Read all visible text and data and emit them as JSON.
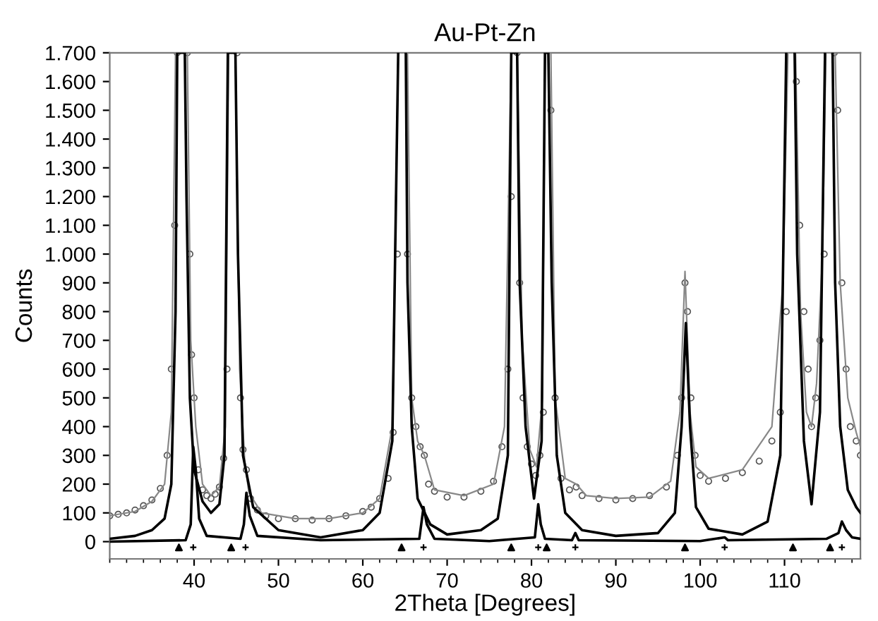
{
  "chart_data": {
    "type": "line",
    "title": "Au-Pt-Zn",
    "xlabel": "2Theta [Degrees]",
    "ylabel": "Counts",
    "xlim": [
      30,
      119
    ],
    "xticks": [
      40,
      50,
      60,
      70,
      80,
      90,
      100,
      110
    ],
    "ylim": [
      -60,
      1700
    ],
    "yticks": [
      0,
      100,
      200,
      300,
      400,
      500,
      600,
      700,
      800,
      900,
      {
        "value": 1000,
        "label": "1.000"
      },
      {
        "value": 1100,
        "label": "1.100"
      },
      {
        "value": 1200,
        "label": "1.200"
      },
      {
        "value": 1300,
        "label": "1.300"
      },
      {
        "value": 1400,
        "label": "1.400"
      },
      {
        "value": 1500,
        "label": "1.500"
      },
      {
        "value": 1600,
        "label": "1.600"
      },
      {
        "value": 1700,
        "label": "1.700"
      }
    ],
    "grid": false,
    "legend": false,
    "series": [
      {
        "type": "scatter",
        "marker": "circle",
        "color": "#555555",
        "x": [
          30,
          31,
          32,
          33,
          34,
          35,
          36,
          36.8,
          37.3,
          37.7,
          38.0,
          39.2,
          39.5,
          39.7,
          40.0,
          40.5,
          41.0,
          41.5,
          42.0,
          42.5,
          43.0,
          43.5,
          43.9,
          45.1,
          45.5,
          45.8,
          46.2,
          46.7,
          47.5,
          48.5,
          50,
          52,
          54,
          56,
          58,
          60,
          61,
          62,
          63,
          63.6,
          64.1,
          65.3,
          65.8,
          66.3,
          66.8,
          67.3,
          67.8,
          68.5,
          70,
          72,
          74,
          75.5,
          76.5,
          77.2,
          77.6,
          78.3,
          78.6,
          79.0,
          79.5,
          80.0,
          80.5,
          81.0,
          81.4,
          82.3,
          82.8,
          83.5,
          84.5,
          85.3,
          86,
          88,
          90,
          92,
          94,
          96,
          97.3,
          97.8,
          98.2,
          98.5,
          98.9,
          99.4,
          100,
          101,
          103,
          105,
          107,
          108.5,
          109.5,
          110.2,
          111.4,
          111.8,
          112.3,
          112.8,
          113.2,
          113.7,
          114.2,
          114.7,
          115.9,
          116.3,
          116.8,
          117.3,
          117.8,
          118.5,
          119
        ],
        "values": [
          90,
          95,
          100,
          110,
          125,
          145,
          185,
          300,
          600,
          1100,
          1700,
          1700,
          1000,
          650,
          500,
          250,
          180,
          160,
          150,
          165,
          190,
          290,
          600,
          1700,
          500,
          320,
          250,
          150,
          110,
          90,
          80,
          80,
          75,
          80,
          90,
          105,
          120,
          150,
          220,
          380,
          1000,
          1000,
          500,
          400,
          330,
          300,
          200,
          175,
          155,
          155,
          175,
          210,
          330,
          600,
          1200,
          1700,
          900,
          500,
          330,
          270,
          230,
          300,
          450,
          1500,
          500,
          220,
          180,
          190,
          160,
          150,
          145,
          150,
          160,
          190,
          300,
          500,
          900,
          800,
          500,
          300,
          230,
          210,
          220,
          240,
          280,
          350,
          450,
          800,
          1600,
          1100,
          800,
          600,
          400,
          500,
          700,
          1000,
          1700,
          1500,
          900,
          600,
          400,
          350,
          300
        ]
      },
      {
        "color": "#888888",
        "x": [
          30,
          33,
          35,
          36.5,
          37.3,
          37.8,
          39.2,
          39.6,
          40.2,
          41,
          42,
          43,
          43.7,
          44.1,
          44.9,
          45.4,
          46,
          46.5,
          48,
          52,
          56,
          60,
          62,
          63.5,
          64.2,
          65.3,
          65.8,
          66.5,
          67.3,
          68.5,
          72,
          75.5,
          76.8,
          77.6,
          78.3,
          78.9,
          79.8,
          80.6,
          81.3,
          81.6,
          82.3,
          82.8,
          84,
          85.3,
          86.5,
          90,
          94,
          96.5,
          97.6,
          98.2,
          98.8,
          99.5,
          101,
          105,
          108.5,
          109.8,
          110.4,
          111.3,
          111.9,
          112.6,
          113.2,
          113.8,
          114.5,
          114.9,
          116.0,
          116.6,
          117.5,
          118.5,
          119
        ],
        "values": [
          90,
          105,
          140,
          200,
          450,
          1700,
          1700,
          700,
          400,
          200,
          160,
          190,
          400,
          1700,
          1700,
          600,
          280,
          170,
          100,
          80,
          80,
          100,
          150,
          400,
          1700,
          1700,
          500,
          350,
          300,
          180,
          160,
          200,
          400,
          1700,
          1700,
          700,
          320,
          260,
          500,
          1700,
          1700,
          500,
          220,
          200,
          160,
          150,
          155,
          210,
          450,
          940,
          450,
          260,
          220,
          250,
          400,
          900,
          1700,
          1700,
          800,
          450,
          400,
          550,
          1000,
          1700,
          1700,
          900,
          500,
          380,
          330
        ]
      },
      {
        "color": "#000000",
        "x": [
          30,
          33,
          35,
          36.5,
          37.3,
          37.8,
          38.0,
          38.9,
          39.1,
          39.5,
          40.0,
          41.0,
          42.0,
          43.0,
          43.6,
          44.0,
          44.9,
          45.2,
          45.8,
          47,
          50,
          55,
          60,
          62,
          63.5,
          64.2,
          64.4,
          65.1,
          65.3,
          65.8,
          66.5,
          68,
          70,
          74,
          76,
          77.2,
          77.6,
          78.3,
          78.6,
          79.3,
          80.3,
          81.2,
          81.6,
          82.0,
          82.4,
          83,
          84,
          86,
          90,
          95,
          97,
          97.8,
          98.3,
          98.8,
          99.5,
          101,
          105,
          108,
          109.5,
          110.2,
          110.5,
          111.2,
          111.5,
          112.3,
          113.2,
          114.2,
          114.8,
          115.1,
          115.7,
          116.0,
          116.6,
          117.5,
          118.5,
          119
        ],
        "values": [
          10,
          20,
          40,
          80,
          200,
          800,
          1700,
          1700,
          1200,
          500,
          250,
          140,
          100,
          130,
          300,
          1700,
          1700,
          1000,
          300,
          120,
          40,
          15,
          40,
          100,
          350,
          1700,
          null,
          1700,
          900,
          400,
          150,
          60,
          25,
          40,
          80,
          300,
          1700,
          1700,
          900,
          400,
          150,
          350,
          1700,
          1700,
          900,
          300,
          100,
          40,
          20,
          30,
          100,
          400,
          760,
          400,
          120,
          45,
          25,
          70,
          300,
          1700,
          null,
          1700,
          1000,
          350,
          130,
          450,
          1700,
          null,
          1700,
          900,
          400,
          180,
          120,
          100
        ]
      },
      {
        "color": "#000000",
        "x": [
          30,
          39.0,
          39.6,
          39.9,
          40.2,
          40.6,
          41.5,
          45.5,
          45.9,
          46.2,
          46.6,
          47.5,
          55,
          66.7,
          67.2,
          67.6,
          68.5,
          75,
          80.4,
          80.8,
          81.1,
          81.6,
          84.8,
          85.2,
          85.6,
          100,
          102.9,
          103.3,
          115,
          116.4,
          116.8,
          117.3,
          118,
          119
        ],
        "values": [
          0,
          5,
          60,
          330,
          250,
          80,
          20,
          10,
          60,
          170,
          90,
          20,
          5,
          10,
          120,
          60,
          10,
          2,
          15,
          130,
          60,
          10,
          5,
          30,
          5,
          2,
          15,
          5,
          10,
          30,
          70,
          40,
          15,
          10
        ]
      },
      {
        "type": "scatter",
        "marker": "triangle",
        "color": "#000000",
        "x": [
          38.2,
          44.4,
          64.6,
          77.6,
          81.8,
          98.2,
          111.0,
          115.4
        ],
        "values": [
          -20,
          -20,
          -20,
          -20,
          -20,
          -20,
          -20,
          -20
        ]
      },
      {
        "type": "scatter",
        "marker": "cross",
        "color": "#000000",
        "x": [
          39.9,
          46.1,
          67.2,
          80.8,
          85.2,
          102.9,
          116.8
        ],
        "values": [
          -20,
          -20,
          -20,
          -20,
          -20,
          -20,
          -20
        ]
      }
    ]
  }
}
